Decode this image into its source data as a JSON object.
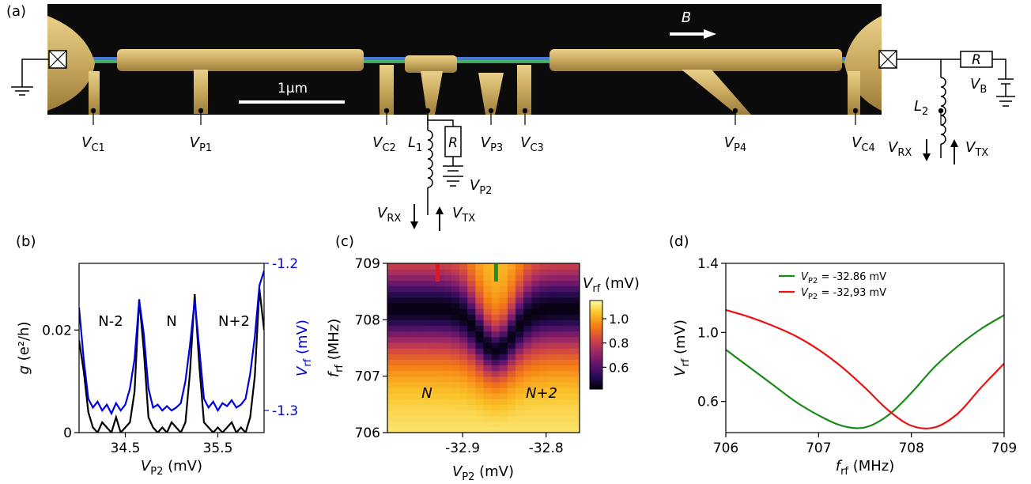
{
  "panel_labels": {
    "a": "(a)",
    "b": "(b)",
    "c": "(c)",
    "d": "(d)"
  },
  "device": {
    "field_label": "B",
    "scale_bar_label": "1μm",
    "gates": [
      {
        "name": "V",
        "sub": "C1"
      },
      {
        "name": "V",
        "sub": "P1"
      },
      {
        "name": "V",
        "sub": "C2"
      },
      {
        "name": "V",
        "sub": "P3"
      },
      {
        "name": "V",
        "sub": "C3"
      },
      {
        "name": "V",
        "sub": "P4"
      },
      {
        "name": "V",
        "sub": "C4"
      }
    ],
    "circuit_left": {
      "inductor": {
        "name": "L",
        "sub": "1"
      },
      "resistor": "R",
      "gate": {
        "name": "V",
        "sub": "P2"
      },
      "rx": {
        "name": "V",
        "sub": "RX"
      },
      "tx": {
        "name": "V",
        "sub": "TX"
      }
    },
    "circuit_right": {
      "resistor": "R",
      "bias": {
        "name": "V",
        "sub": "B"
      },
      "inductor": {
        "name": "L",
        "sub": "2"
      },
      "rx": {
        "name": "V",
        "sub": "RX"
      },
      "tx": {
        "name": "V",
        "sub": "TX"
      }
    },
    "colors": {
      "background": "#0a0a0a",
      "gold": "#d1b268",
      "wire_green": "#4caf6a",
      "wire_blue": "#4a78d8"
    }
  },
  "chart_data": [
    {
      "panel": "b",
      "type": "line",
      "xlabel": {
        "name": "V",
        "sub": "P2",
        "unit": " (mV)"
      },
      "ylabel_left": {
        "pre": "g",
        "unit": " (e²/h)"
      },
      "ylabel_right": {
        "name": "V",
        "sub": "rf",
        "unit": " (mV)"
      },
      "xlim": [
        34.0,
        36.0
      ],
      "ylim_left": [
        0,
        0.033
      ],
      "ylim_right": [
        -1.315,
        -1.2
      ],
      "xticks": [
        34.5,
        35.5
      ],
      "xtick_labels": [
        "34.5",
        "35.5"
      ],
      "yticks_left": [
        0,
        0.02
      ],
      "ytick_labels_left": [
        "0",
        "0.02"
      ],
      "yticks_right": [
        -1.3,
        -1.2
      ],
      "ytick_labels_right": [
        "-1.3",
        "-1.2"
      ],
      "annotations": [
        "N-2",
        "N",
        "N+2"
      ],
      "series": [
        {
          "axis": "left",
          "color": "#000000",
          "x": [
            34.0,
            34.05,
            34.1,
            34.15,
            34.2,
            34.25,
            34.3,
            34.35,
            34.4,
            34.45,
            34.5,
            34.55,
            34.6,
            34.65,
            34.7,
            34.75,
            34.8,
            34.85,
            34.9,
            34.95,
            35.0,
            35.05,
            35.1,
            35.15,
            35.2,
            35.25,
            35.3,
            35.35,
            35.4,
            35.45,
            35.5,
            35.55,
            35.6,
            35.65,
            35.7,
            35.75,
            35.8,
            35.85,
            35.9,
            35.95,
            36.0
          ],
          "values": [
            0.018,
            0.012,
            0.004,
            0.001,
            0.0,
            0.002,
            0.001,
            0.0,
            0.003,
            0.0,
            0.001,
            0.002,
            0.008,
            0.026,
            0.016,
            0.003,
            0.001,
            0.0,
            0.001,
            0.0,
            0.002,
            0.001,
            0.0,
            0.002,
            0.012,
            0.027,
            0.013,
            0.002,
            0.001,
            0.0,
            0.001,
            0.0,
            0.001,
            0.002,
            0.0,
            0.001,
            0.0,
            0.003,
            0.011,
            0.028,
            0.02
          ]
        },
        {
          "axis": "right",
          "color": "#0000dd",
          "x": [
            34.0,
            34.05,
            34.1,
            34.15,
            34.2,
            34.25,
            34.3,
            34.35,
            34.4,
            34.45,
            34.5,
            34.55,
            34.6,
            34.65,
            34.7,
            34.75,
            34.8,
            34.85,
            34.9,
            34.95,
            35.0,
            35.05,
            35.1,
            35.15,
            35.2,
            35.25,
            35.3,
            35.35,
            35.4,
            35.45,
            35.5,
            35.55,
            35.6,
            35.65,
            35.7,
            35.75,
            35.8,
            35.85,
            35.9,
            35.95,
            36.0
          ],
          "values": [
            -1.23,
            -1.265,
            -1.292,
            -1.298,
            -1.294,
            -1.3,
            -1.296,
            -1.302,
            -1.295,
            -1.3,
            -1.296,
            -1.285,
            -1.265,
            -1.225,
            -1.248,
            -1.285,
            -1.298,
            -1.296,
            -1.3,
            -1.297,
            -1.3,
            -1.298,
            -1.295,
            -1.28,
            -1.255,
            -1.225,
            -1.258,
            -1.292,
            -1.298,
            -1.294,
            -1.3,
            -1.295,
            -1.297,
            -1.293,
            -1.298,
            -1.296,
            -1.292,
            -1.275,
            -1.25,
            -1.215,
            -1.205
          ]
        }
      ]
    },
    {
      "panel": "c",
      "type": "heatmap",
      "xlabel": {
        "name": "V",
        "sub": "P2",
        "unit": " (mV)"
      },
      "ylabel": {
        "name": "f",
        "sub": "rf",
        "unit": " (MHz)"
      },
      "colorbar_label": {
        "name": "V",
        "sub": "rf",
        "unit": " (mV)"
      },
      "xlim": [
        -32.99,
        -32.76
      ],
      "ylim": [
        706,
        709
      ],
      "xticks": [
        -32.9,
        -32.8
      ],
      "xtick_labels": [
        "-32.9",
        "-32.8"
      ],
      "yticks": [
        706,
        707,
        708,
        709
      ],
      "ytick_labels": [
        "706",
        "707",
        "708",
        "709"
      ],
      "clim": [
        0.42,
        1.15
      ],
      "colorbar_ticks": [
        0.6,
        0.8,
        1.0
      ],
      "colorbar_tick_labels": [
        "0.6",
        "0.8",
        "1.0"
      ],
      "annotations": [
        "N",
        "N+2"
      ],
      "markers": [
        {
          "x": -32.93,
          "color": "#e8161b"
        },
        {
          "x": -32.86,
          "color": "#1f8f1f"
        }
      ],
      "resonance": {
        "f0_far": 708.2,
        "f0_center": 707.45,
        "center_x": -32.86,
        "width_mV": 0.03
      },
      "colors": {
        "map": [
          "#000004",
          "#280b54",
          "#65156e",
          "#9f2a63",
          "#d44842",
          "#f57d15",
          "#fac228",
          "#fcffa4"
        ]
      }
    },
    {
      "panel": "d",
      "type": "line",
      "xlabel": {
        "name": "f",
        "sub": "rf",
        "unit": " (MHz)"
      },
      "ylabel": {
        "name": "V",
        "sub": "rf",
        "unit": " (mV)"
      },
      "xlim": [
        706,
        709
      ],
      "ylim": [
        0.42,
        1.4
      ],
      "xticks": [
        706,
        707,
        708,
        709
      ],
      "xtick_labels": [
        "706",
        "707",
        "708",
        "709"
      ],
      "yticks": [
        0.6,
        1.0,
        1.4
      ],
      "ytick_labels": [
        "0.6",
        "1.0",
        "1.4"
      ],
      "series": [
        {
          "legend": {
            "name": "V",
            "sub": "P2",
            "value": " = -32.86 mV"
          },
          "color": "#1a8a1a",
          "x": [
            706.0,
            706.25,
            706.5,
            706.75,
            707.0,
            707.25,
            707.5,
            707.75,
            708.0,
            708.25,
            708.5,
            708.75,
            709.0
          ],
          "values": [
            0.9,
            0.8,
            0.7,
            0.6,
            0.52,
            0.46,
            0.45,
            0.52,
            0.65,
            0.8,
            0.92,
            1.02,
            1.1
          ]
        },
        {
          "legend": {
            "name": "V",
            "sub": "P2",
            "value": " = -32,93 mV"
          },
          "color": "#ee1111",
          "x": [
            706.0,
            706.25,
            706.5,
            706.75,
            707.0,
            707.25,
            707.5,
            707.75,
            708.0,
            708.25,
            708.5,
            708.75,
            709.0
          ],
          "values": [
            1.13,
            1.09,
            1.04,
            0.98,
            0.9,
            0.8,
            0.68,
            0.55,
            0.46,
            0.45,
            0.53,
            0.68,
            0.82
          ]
        }
      ]
    }
  ]
}
